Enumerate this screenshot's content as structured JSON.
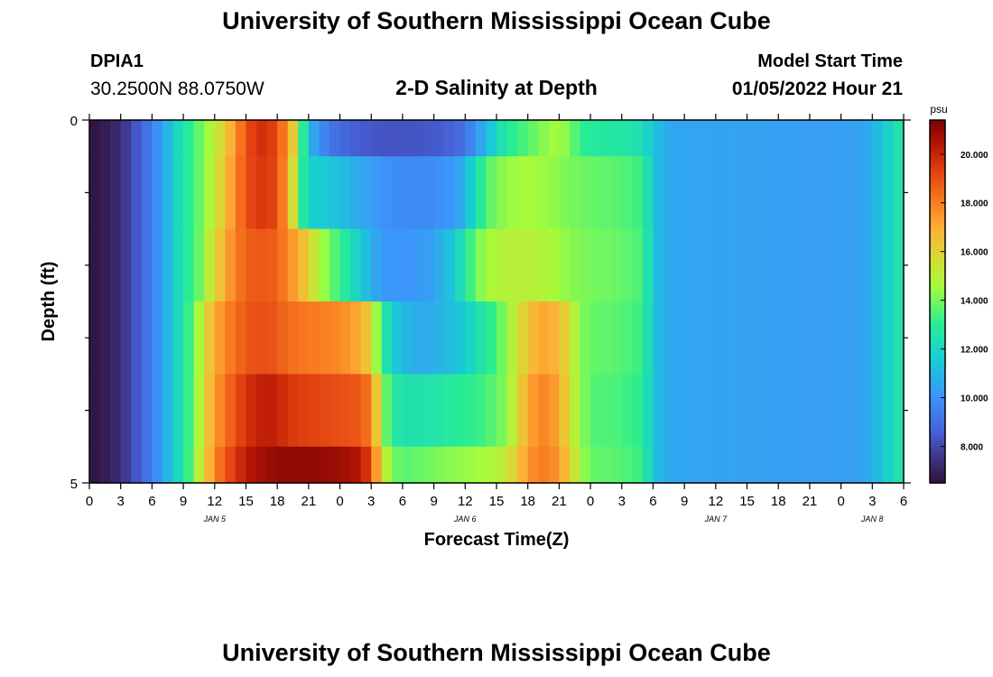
{
  "header": {
    "title": "University of Southern Mississippi Ocean Cube",
    "station_id": "DPIA1",
    "station_coords": "30.2500N  88.0750W",
    "plot_title": "2-D Salinity at Depth",
    "model_start_label": "Model Start Time",
    "model_start_value": "01/05/2022 Hour 21"
  },
  "footer": {
    "title": "University of Southern Mississippi Ocean Cube"
  },
  "chart_data": {
    "type": "heatmap",
    "title": "2-D Salinity at Depth",
    "xlabel": "Forecast Time(Z)",
    "ylabel": "Depth (ft)",
    "x_tick_labels": [
      "0",
      "3",
      "6",
      "9",
      "12",
      "15",
      "18",
      "21",
      "0",
      "3",
      "6",
      "9",
      "12",
      "15",
      "18",
      "21",
      "0",
      "3",
      "6",
      "9",
      "12",
      "15",
      "18",
      "21",
      "0",
      "3",
      "6"
    ],
    "date_labels": [
      {
        "label": "JAN 5",
        "at_hour": 12
      },
      {
        "label": "JAN 6",
        "at_hour": 36
      },
      {
        "label": "JAN 7",
        "at_hour": 60
      },
      {
        "label": "JAN 8",
        "at_hour": 75
      }
    ],
    "x_range_hours": [
      0,
      78
    ],
    "y_range": [
      0,
      5
    ],
    "y_tick_labels": [
      "0",
      "5"
    ],
    "y_minor_ticks": 5,
    "colorbar": {
      "unit": "psu",
      "min": 6.5,
      "max": 21.4,
      "tick_labels": [
        "8.000",
        "10.000",
        "12.000",
        "14.000",
        "16.000",
        "18.000",
        "20.000"
      ],
      "tick_values": [
        8,
        10,
        12,
        14,
        16,
        18,
        20
      ]
    },
    "layers": [
      {
        "depth_range": [
          0,
          0.5
        ],
        "keyframes": [
          [
            0,
            6.6
          ],
          [
            1,
            6.7
          ],
          [
            2,
            7.0
          ],
          [
            3,
            7.4
          ],
          [
            4,
            8.0
          ],
          [
            5,
            8.7
          ],
          [
            6,
            9.4
          ],
          [
            7,
            10.4
          ],
          [
            8,
            11.6
          ],
          [
            9,
            12.6
          ],
          [
            10,
            13.3
          ],
          [
            11,
            14.2
          ],
          [
            12,
            15.0
          ],
          [
            13,
            16.2
          ],
          [
            14,
            17.5
          ],
          [
            15,
            19.0
          ],
          [
            16,
            19.6
          ],
          [
            17,
            19.8
          ],
          [
            18,
            19.0
          ],
          [
            19,
            17.5
          ],
          [
            20,
            15.0
          ],
          [
            20.6,
            12.5
          ],
          [
            21,
            11.0
          ],
          [
            22,
            10.0
          ],
          [
            23,
            9.2
          ],
          [
            25,
            8.6
          ],
          [
            28,
            8.3
          ],
          [
            31,
            8.3
          ],
          [
            34,
            8.5
          ],
          [
            36,
            9.1
          ],
          [
            37,
            10.0
          ],
          [
            38,
            11.0
          ],
          [
            39,
            12.0
          ],
          [
            40,
            12.8
          ],
          [
            42,
            13.6
          ],
          [
            44,
            14.4
          ],
          [
            45,
            14.6
          ],
          [
            46,
            14.0
          ],
          [
            47,
            13.2
          ],
          [
            48,
            12.8
          ],
          [
            52,
            12.6
          ],
          [
            53,
            12.2
          ],
          [
            54,
            11.4
          ],
          [
            55,
            10.8
          ],
          [
            56,
            10.5
          ],
          [
            70,
            10.3
          ],
          [
            74,
            10.4
          ],
          [
            75,
            10.8
          ],
          [
            76,
            11.4
          ],
          [
            77,
            12.2
          ],
          [
            78,
            12.8
          ]
        ]
      },
      {
        "depth_range": [
          0.5,
          1.5
        ],
        "keyframes": [
          [
            0,
            6.6
          ],
          [
            1,
            6.7
          ],
          [
            2,
            7.0
          ],
          [
            3,
            7.4
          ],
          [
            4,
            8.0
          ],
          [
            5,
            8.7
          ],
          [
            6,
            9.4
          ],
          [
            7,
            10.4
          ],
          [
            8,
            11.6
          ],
          [
            9,
            12.6
          ],
          [
            10,
            13.3
          ],
          [
            11,
            14.2
          ],
          [
            12,
            15.2
          ],
          [
            13,
            16.5
          ],
          [
            14,
            17.8
          ],
          [
            15,
            19.0
          ],
          [
            16,
            19.4
          ],
          [
            17,
            19.6
          ],
          [
            18,
            19.0
          ],
          [
            19,
            17.2
          ],
          [
            20,
            14.0
          ],
          [
            20.6,
            12.5
          ],
          [
            21,
            11.8
          ],
          [
            24,
            11.2
          ],
          [
            26,
            10.6
          ],
          [
            28,
            10.0
          ],
          [
            30,
            9.7
          ],
          [
            33,
            9.8
          ],
          [
            35,
            10.2
          ],
          [
            36,
            11.0
          ],
          [
            37,
            12.2
          ],
          [
            38,
            13.6
          ],
          [
            40,
            14.4
          ],
          [
            42,
            14.6
          ],
          [
            44,
            14.4
          ],
          [
            46,
            14.0
          ],
          [
            48,
            13.8
          ],
          [
            51,
            13.6
          ],
          [
            53,
            13.2
          ],
          [
            54,
            11.4
          ],
          [
            55,
            10.8
          ],
          [
            56,
            10.5
          ],
          [
            70,
            10.3
          ],
          [
            74,
            10.4
          ],
          [
            75,
            10.8
          ],
          [
            76,
            11.4
          ],
          [
            77,
            12.2
          ],
          [
            78,
            12.8
          ]
        ]
      },
      {
        "depth_range": [
          1.5,
          2.5
        ],
        "keyframes": [
          [
            0,
            6.6
          ],
          [
            1,
            6.7
          ],
          [
            2,
            7.0
          ],
          [
            3,
            7.4
          ],
          [
            4,
            8.0
          ],
          [
            5,
            8.7
          ],
          [
            6,
            9.4
          ],
          [
            7,
            10.4
          ],
          [
            8,
            11.6
          ],
          [
            9,
            12.6
          ],
          [
            10,
            13.3
          ],
          [
            11,
            14.4
          ],
          [
            12,
            15.8
          ],
          [
            13,
            17.0
          ],
          [
            14,
            18.0
          ],
          [
            15,
            18.6
          ],
          [
            16,
            18.8
          ],
          [
            17,
            18.8
          ],
          [
            18,
            18.6
          ],
          [
            19,
            17.8
          ],
          [
            20,
            17.0
          ],
          [
            21,
            16.0
          ],
          [
            22,
            14.8
          ],
          [
            23,
            14.0
          ],
          [
            24,
            13.2
          ],
          [
            25,
            12.4
          ],
          [
            26,
            11.6
          ],
          [
            27,
            10.8
          ],
          [
            28,
            10.2
          ],
          [
            30,
            10.0
          ],
          [
            33,
            10.4
          ],
          [
            35,
            11.6
          ],
          [
            36,
            12.8
          ],
          [
            37,
            13.8
          ],
          [
            38,
            14.6
          ],
          [
            40,
            15.0
          ],
          [
            42,
            15.0
          ],
          [
            44,
            14.8
          ],
          [
            46,
            14.2
          ],
          [
            48,
            14.0
          ],
          [
            51,
            13.8
          ],
          [
            53,
            13.4
          ],
          [
            54,
            11.4
          ],
          [
            55,
            10.8
          ],
          [
            56,
            10.5
          ],
          [
            70,
            10.3
          ],
          [
            74,
            10.4
          ],
          [
            75,
            10.8
          ],
          [
            76,
            11.4
          ],
          [
            77,
            12.2
          ],
          [
            78,
            12.8
          ]
        ]
      },
      {
        "depth_range": [
          2.5,
          3.5
        ],
        "keyframes": [
          [
            0,
            6.6
          ],
          [
            1,
            6.7
          ],
          [
            2,
            7.0
          ],
          [
            3,
            7.4
          ],
          [
            4,
            8.0
          ],
          [
            5,
            8.7
          ],
          [
            6,
            9.4
          ],
          [
            7,
            10.4
          ],
          [
            8,
            11.6
          ],
          [
            9,
            12.6
          ],
          [
            10,
            13.8
          ],
          [
            11,
            15.6
          ],
          [
            12,
            17.0
          ],
          [
            13,
            17.8
          ],
          [
            14,
            18.4
          ],
          [
            15,
            18.8
          ],
          [
            16,
            19.0
          ],
          [
            17,
            19.0
          ],
          [
            18,
            18.8
          ],
          [
            19,
            18.4
          ],
          [
            20,
            18.2
          ],
          [
            22,
            18.0
          ],
          [
            24,
            17.8
          ],
          [
            26,
            17.0
          ],
          [
            27,
            15.8
          ],
          [
            28,
            13.0
          ],
          [
            29,
            11.8
          ],
          [
            30,
            11.0
          ],
          [
            32,
            10.6
          ],
          [
            35,
            11.2
          ],
          [
            37,
            12.2
          ],
          [
            39,
            13.4
          ],
          [
            40,
            14.4
          ],
          [
            41,
            15.4
          ],
          [
            42,
            16.4
          ],
          [
            43,
            17.0
          ],
          [
            44,
            17.2
          ],
          [
            45,
            16.6
          ],
          [
            46,
            15.6
          ],
          [
            47,
            14.2
          ],
          [
            48,
            13.8
          ],
          [
            51,
            13.6
          ],
          [
            53,
            13.2
          ],
          [
            54,
            11.4
          ],
          [
            55,
            10.8
          ],
          [
            56,
            10.5
          ],
          [
            70,
            10.3
          ],
          [
            74,
            10.4
          ],
          [
            75,
            10.8
          ],
          [
            76,
            11.4
          ],
          [
            77,
            12.2
          ],
          [
            78,
            12.8
          ]
        ]
      },
      {
        "depth_range": [
          3.5,
          4.5
        ],
        "keyframes": [
          [
            0,
            6.6
          ],
          [
            1,
            6.7
          ],
          [
            2,
            7.0
          ],
          [
            3,
            7.4
          ],
          [
            4,
            8.0
          ],
          [
            5,
            8.7
          ],
          [
            6,
            9.4
          ],
          [
            7,
            10.4
          ],
          [
            8,
            11.6
          ],
          [
            9,
            12.6
          ],
          [
            10,
            13.8
          ],
          [
            11,
            15.8
          ],
          [
            12,
            17.4
          ],
          [
            13,
            18.2
          ],
          [
            14,
            19.0
          ],
          [
            15,
            19.6
          ],
          [
            16,
            20.0
          ],
          [
            17,
            20.2
          ],
          [
            18,
            20.0
          ],
          [
            19,
            19.6
          ],
          [
            20,
            19.4
          ],
          [
            22,
            19.2
          ],
          [
            24,
            19.0
          ],
          [
            26,
            18.8
          ],
          [
            27,
            18.0
          ],
          [
            28,
            14.6
          ],
          [
            29,
            12.8
          ],
          [
            30,
            12.4
          ],
          [
            33,
            12.6
          ],
          [
            36,
            13.0
          ],
          [
            38,
            13.4
          ],
          [
            40,
            14.2
          ],
          [
            41,
            15.8
          ],
          [
            42,
            17.0
          ],
          [
            43,
            17.8
          ],
          [
            44,
            17.8
          ],
          [
            45,
            17.0
          ],
          [
            46,
            15.6
          ],
          [
            47,
            14.4
          ],
          [
            48,
            13.6
          ],
          [
            51,
            13.4
          ],
          [
            53,
            13.0
          ],
          [
            54,
            11.4
          ],
          [
            55,
            10.8
          ],
          [
            56,
            10.5
          ],
          [
            70,
            10.3
          ],
          [
            74,
            10.4
          ],
          [
            75,
            10.8
          ],
          [
            76,
            11.4
          ],
          [
            77,
            12.2
          ],
          [
            78,
            12.8
          ]
        ]
      },
      {
        "depth_range": [
          4.5,
          5.0
        ],
        "keyframes": [
          [
            0,
            6.6
          ],
          [
            1,
            6.7
          ],
          [
            2,
            7.0
          ],
          [
            3,
            7.4
          ],
          [
            4,
            8.0
          ],
          [
            5,
            8.7
          ],
          [
            6,
            9.4
          ],
          [
            7,
            10.4
          ],
          [
            8,
            11.6
          ],
          [
            9,
            12.6
          ],
          [
            10,
            14.0
          ],
          [
            11,
            16.0
          ],
          [
            12,
            17.8
          ],
          [
            13,
            18.8
          ],
          [
            14,
            19.6
          ],
          [
            15,
            20.2
          ],
          [
            16,
            20.6
          ],
          [
            17,
            20.8
          ],
          [
            18,
            21.0
          ],
          [
            19,
            21.0
          ],
          [
            20,
            21.0
          ],
          [
            22,
            21.0
          ],
          [
            24,
            20.8
          ],
          [
            26,
            20.4
          ],
          [
            27,
            19.0
          ],
          [
            28,
            15.8
          ],
          [
            29,
            14.0
          ],
          [
            30,
            13.6
          ],
          [
            33,
            14.0
          ],
          [
            36,
            14.4
          ],
          [
            38,
            14.6
          ],
          [
            40,
            15.2
          ],
          [
            41,
            16.4
          ],
          [
            42,
            17.4
          ],
          [
            43,
            18.0
          ],
          [
            44,
            18.0
          ],
          [
            45,
            17.4
          ],
          [
            46,
            16.2
          ],
          [
            47,
            14.6
          ],
          [
            48,
            13.8
          ],
          [
            51,
            13.6
          ],
          [
            53,
            13.2
          ],
          [
            54,
            11.4
          ],
          [
            55,
            10.8
          ],
          [
            56,
            10.5
          ],
          [
            70,
            10.3
          ],
          [
            74,
            10.4
          ],
          [
            75,
            10.8
          ],
          [
            76,
            11.4
          ],
          [
            77,
            12.2
          ],
          [
            78,
            12.8
          ]
        ]
      }
    ]
  }
}
